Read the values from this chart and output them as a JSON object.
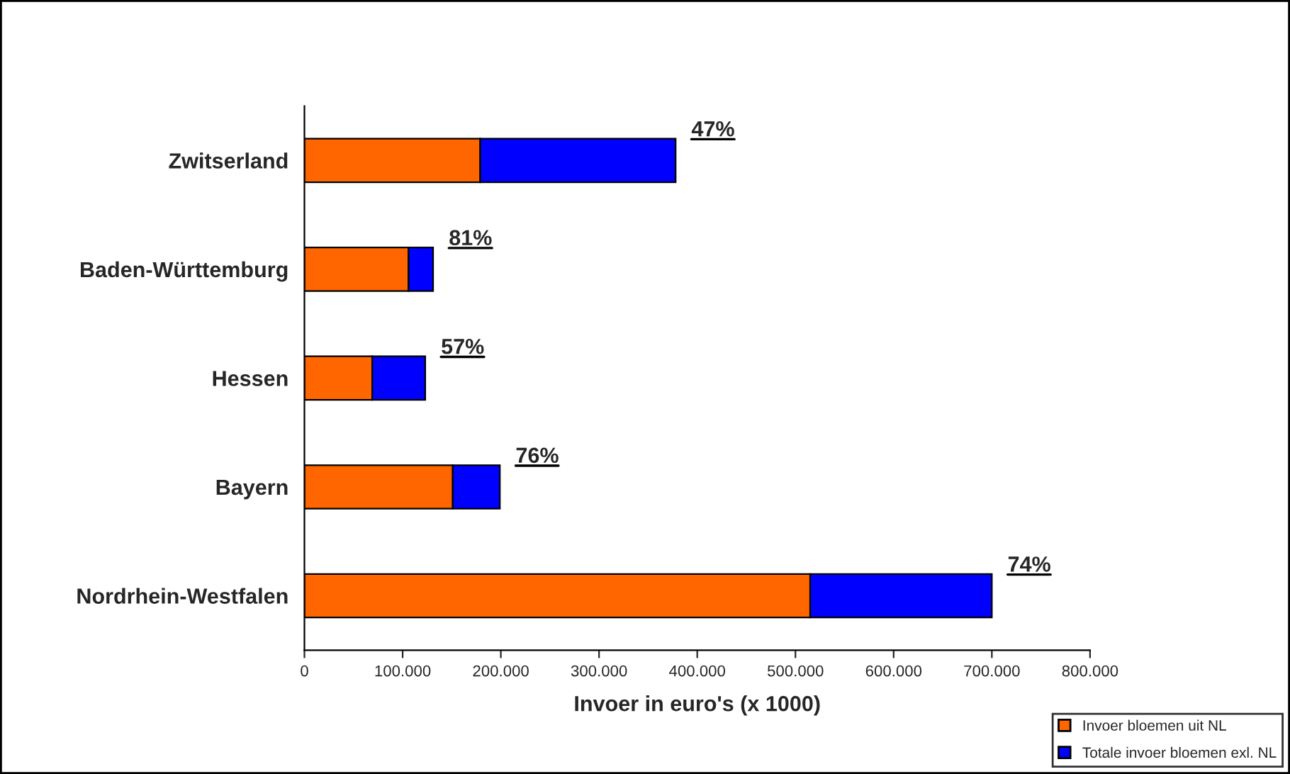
{
  "chart_data": {
    "type": "bar",
    "orientation": "horizontal",
    "stacked": true,
    "xlabel": "Invoer in euro's (x 1000)",
    "categories": [
      "Zwitserland",
      "Baden-Württemburg",
      "Hessen",
      "Bayern",
      "Nordrhein-Westfalen"
    ],
    "series": [
      {
        "name": "Invoer bloemen uit NL",
        "color": "#ff6600",
        "values": [
          179000,
          106000,
          69000,
          151000,
          515000
        ]
      },
      {
        "name": "Totale invoer bloemen exl. NL",
        "color": "#0000ff",
        "values": [
          199000,
          25000,
          54000,
          48000,
          185000
        ]
      }
    ],
    "xlim": [
      0,
      800000
    ],
    "xticks": [
      0,
      {
        "value": 100000,
        "label": "100.000"
      },
      {
        "value": 200000,
        "label": "200.000"
      },
      {
        "value": 300000,
        "label": "300.000"
      },
      {
        "value": 400000,
        "label": "400.000"
      },
      {
        "value": 500000,
        "label": "500.000"
      },
      {
        "value": 600000,
        "label": "600.000"
      },
      {
        "value": 700000,
        "label": "700.000"
      },
      {
        "value": 800000,
        "label": "800.000"
      }
    ],
    "annotations": [
      {
        "text": "47%",
        "x": 378000,
        "y": "Zwitserland"
      },
      {
        "text": "81%",
        "x": 131000,
        "y": "Baden-Württemburg"
      },
      {
        "text": "57%",
        "x": 123000,
        "y": "Hessen"
      },
      {
        "text": "76%",
        "x": 199000,
        "y": "Bayern"
      },
      {
        "text": "74%",
        "x": 700000,
        "y": "Nordrhein-Westfalen"
      }
    ],
    "grid": false,
    "legend": "bottom right"
  }
}
